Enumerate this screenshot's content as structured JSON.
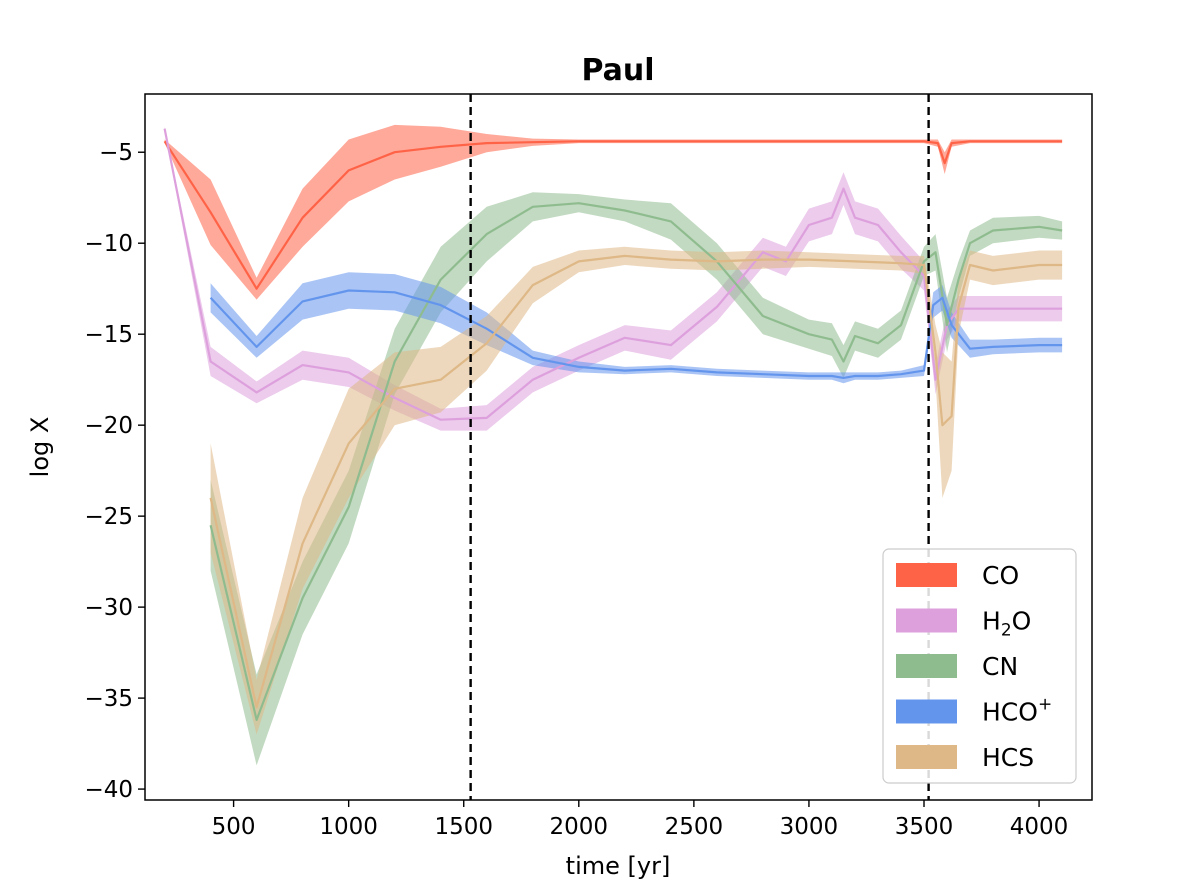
{
  "chart_data": {
    "type": "line",
    "title": "Paul",
    "xlabel": "time [yr]",
    "ylabel": "log X",
    "xlim": [
      115,
      4230
    ],
    "ylim": [
      -40.6,
      -1.8
    ],
    "xticks": [
      500,
      1000,
      1500,
      2000,
      2500,
      3000,
      3500,
      4000
    ],
    "xtick_labels": [
      "500",
      "1000",
      "1500",
      "2000",
      "2500",
      "3000",
      "3500",
      "4000"
    ],
    "yticks": [
      -5,
      -10,
      -15,
      -20,
      -25,
      -30,
      -35,
      -40
    ],
    "ytick_labels": [
      "−5",
      "−10",
      "−15",
      "−20",
      "−25",
      "−30",
      "−35",
      "−40"
    ],
    "vlines": [
      1530,
      3520
    ],
    "grid": false,
    "legend_position": "lower-right",
    "series": [
      {
        "name": "CO",
        "label_main": "CO",
        "color": "#FF6347",
        "x": [
          200,
          400,
          600,
          800,
          1000,
          1200,
          1400,
          1600,
          1800,
          2000,
          2200,
          2400,
          2600,
          2800,
          3000,
          3200,
          3400,
          3500,
          3560,
          3590,
          3620,
          3700,
          3800,
          4000,
          4100
        ],
        "y": [
          -4.4,
          -8.3,
          -12.5,
          -8.6,
          -6.0,
          -5.0,
          -4.7,
          -4.5,
          -4.45,
          -4.4,
          -4.4,
          -4.4,
          -4.4,
          -4.4,
          -4.4,
          -4.4,
          -4.4,
          -4.4,
          -4.5,
          -5.6,
          -4.5,
          -4.4,
          -4.4,
          -4.4,
          -4.4
        ],
        "spread": [
          0.1,
          1.8,
          0.6,
          1.6,
          1.7,
          1.5,
          1.1,
          0.5,
          0.2,
          0.1,
          0.1,
          0.1,
          0.1,
          0.1,
          0.1,
          0.1,
          0.1,
          0.1,
          0.2,
          0.6,
          0.2,
          0.1,
          0.1,
          0.1,
          0.1
        ]
      },
      {
        "name": "H2O",
        "label_main": "H",
        "label_sub": "2",
        "label_tail": "O",
        "color": "#DDA0DD",
        "x": [
          200,
          400,
          600,
          800,
          1000,
          1200,
          1400,
          1600,
          1800,
          2000,
          2200,
          2400,
          2600,
          2800,
          2900,
          3000,
          3100,
          3150,
          3200,
          3300,
          3400,
          3500,
          3550,
          3600,
          3650,
          3700,
          3800,
          3900,
          4000,
          4100
        ],
        "y": [
          -3.7,
          -16.5,
          -18.2,
          -16.7,
          -17.1,
          -18.5,
          -19.7,
          -19.6,
          -17.5,
          -16.3,
          -15.2,
          -15.6,
          -13.5,
          -10.5,
          -11.0,
          -9.0,
          -8.6,
          -7.0,
          -8.6,
          -9.0,
          -10.5,
          -11.8,
          -17.5,
          -14.5,
          -13.6,
          -13.6,
          -13.6,
          -13.6,
          -13.6,
          -13.6
        ],
        "spread": [
          0.1,
          0.8,
          0.6,
          0.8,
          0.8,
          0.7,
          0.6,
          0.7,
          0.7,
          0.7,
          0.7,
          0.8,
          0.8,
          0.8,
          0.8,
          0.9,
          0.9,
          0.9,
          0.9,
          0.9,
          0.9,
          0.8,
          0.8,
          0.8,
          0.7,
          0.7,
          0.7,
          0.7,
          0.7,
          0.7
        ]
      },
      {
        "name": "CN",
        "label_main": "CN",
        "color": "#8FBC8F",
        "x": [
          400,
          600,
          800,
          1000,
          1200,
          1400,
          1600,
          1800,
          2000,
          2200,
          2400,
          2600,
          2800,
          3000,
          3100,
          3150,
          3200,
          3300,
          3400,
          3500,
          3550,
          3600,
          3650,
          3700,
          3800,
          4000,
          4100
        ],
        "y": [
          -25.5,
          -36.2,
          -29.5,
          -24.5,
          -16.5,
          -12.0,
          -9.5,
          -8.0,
          -7.8,
          -8.2,
          -8.8,
          -11.0,
          -14.0,
          -15.0,
          -15.3,
          -16.5,
          -15.1,
          -15.5,
          -14.5,
          -11.0,
          -10.5,
          -14.5,
          -12.0,
          -10.0,
          -9.3,
          -9.1,
          -9.3
        ],
        "spread": [
          2.5,
          2.5,
          2.0,
          2.0,
          1.8,
          1.8,
          1.5,
          0.8,
          0.5,
          0.6,
          1.0,
          1.0,
          1.0,
          0.8,
          0.9,
          0.9,
          0.8,
          0.8,
          0.8,
          0.8,
          1.0,
          1.5,
          1.0,
          0.7,
          0.7,
          0.6,
          0.5
        ]
      },
      {
        "name": "HCO+",
        "label_main": "HCO",
        "label_sup": "+",
        "color": "#6495ED",
        "x": [
          400,
          600,
          800,
          1000,
          1200,
          1400,
          1600,
          1800,
          2000,
          2200,
          2400,
          2600,
          2800,
          3000,
          3100,
          3150,
          3200,
          3300,
          3400,
          3500,
          3540,
          3580,
          3620,
          3700,
          3800,
          4000,
          4100
        ],
        "y": [
          -13.0,
          -15.7,
          -13.2,
          -12.6,
          -12.7,
          -13.4,
          -14.7,
          -16.3,
          -16.8,
          -17.0,
          -16.9,
          -17.1,
          -17.2,
          -17.3,
          -17.3,
          -17.4,
          -17.3,
          -17.3,
          -17.2,
          -17.0,
          -13.4,
          -13.0,
          -14.5,
          -15.8,
          -15.7,
          -15.6,
          -15.6
        ],
        "spread": [
          0.8,
          0.6,
          1.0,
          1.0,
          1.0,
          1.0,
          0.9,
          0.4,
          0.3,
          0.2,
          0.2,
          0.2,
          0.2,
          0.2,
          0.2,
          0.3,
          0.2,
          0.2,
          0.2,
          0.3,
          0.7,
          0.7,
          0.7,
          0.5,
          0.4,
          0.4,
          0.4
        ]
      },
      {
        "name": "HCS",
        "label_main": "HCS",
        "color": "#DEB887",
        "x": [
          400,
          600,
          800,
          1000,
          1200,
          1400,
          1600,
          1800,
          2000,
          2200,
          2400,
          2600,
          2800,
          3000,
          3200,
          3400,
          3500,
          3550,
          3580,
          3620,
          3650,
          3700,
          3800,
          4000,
          4100
        ],
        "y": [
          -24.0,
          -35.5,
          -26.5,
          -21.0,
          -18.0,
          -17.5,
          -15.5,
          -12.3,
          -11.0,
          -10.7,
          -10.9,
          -11.0,
          -10.9,
          -10.9,
          -11.0,
          -11.1,
          -11.2,
          -16.0,
          -20.0,
          -19.5,
          -13.5,
          -11.2,
          -11.5,
          -11.2,
          -11.2
        ],
        "spread": [
          3.0,
          1.5,
          2.5,
          3.0,
          2.0,
          1.8,
          1.5,
          1.0,
          0.6,
          0.5,
          0.5,
          0.5,
          0.5,
          0.4,
          0.4,
          0.4,
          0.5,
          1.5,
          4.0,
          3.0,
          1.5,
          0.8,
          0.8,
          0.8,
          0.8
        ]
      }
    ]
  }
}
